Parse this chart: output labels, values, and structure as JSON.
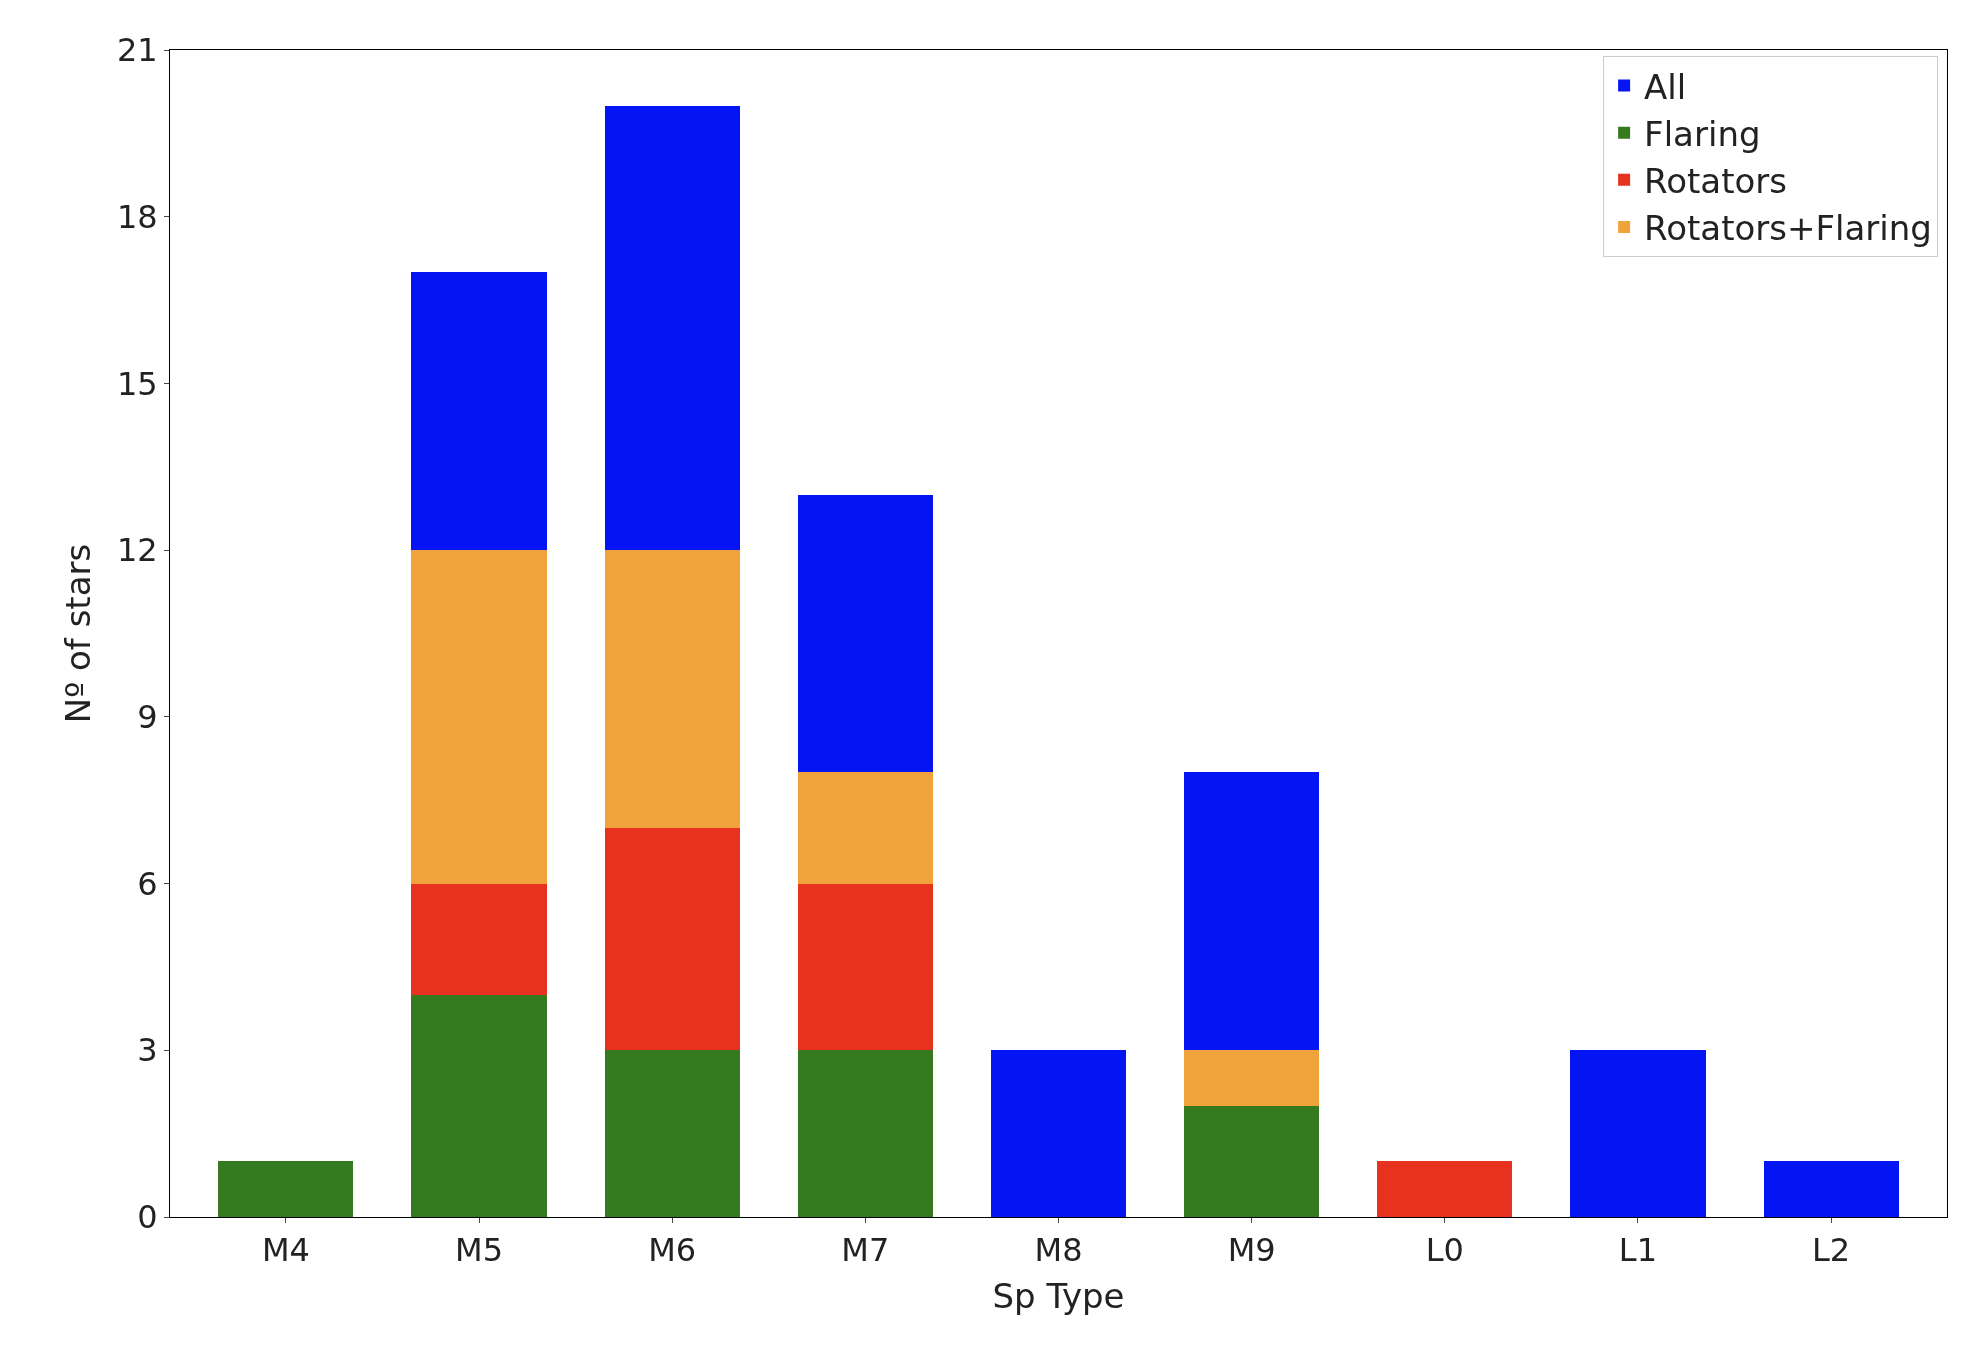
{
  "chart_data": {
    "type": "bar",
    "stacked": true,
    "xlabel": "Sp Type",
    "ylabel": "Nº of stars",
    "categories": [
      "M4",
      "M5",
      "M6",
      "M7",
      "M8",
      "M9",
      "L0",
      "L1",
      "L2"
    ],
    "series": [
      {
        "name": "Flaring",
        "color": "#367a20",
        "values": [
          1,
          4,
          3,
          3,
          0,
          2,
          0,
          0,
          0
        ]
      },
      {
        "name": "Rotators",
        "color": "#e6321e",
        "values": [
          0,
          2,
          4,
          3,
          0,
          0,
          1,
          0,
          0
        ]
      },
      {
        "name": "Rotators+Flaring",
        "color": "#f0a33a",
        "values": [
          0,
          6,
          5,
          2,
          0,
          1,
          0,
          0,
          0
        ]
      },
      {
        "name": "All",
        "color": "#0414f2",
        "values": [
          0,
          5,
          8,
          5,
          3,
          5,
          0,
          3,
          1
        ]
      }
    ],
    "ylim": [
      0,
      21
    ],
    "yticks": [
      0,
      3,
      6,
      9,
      12,
      15,
      18,
      21
    ],
    "legend": "top right"
  }
}
